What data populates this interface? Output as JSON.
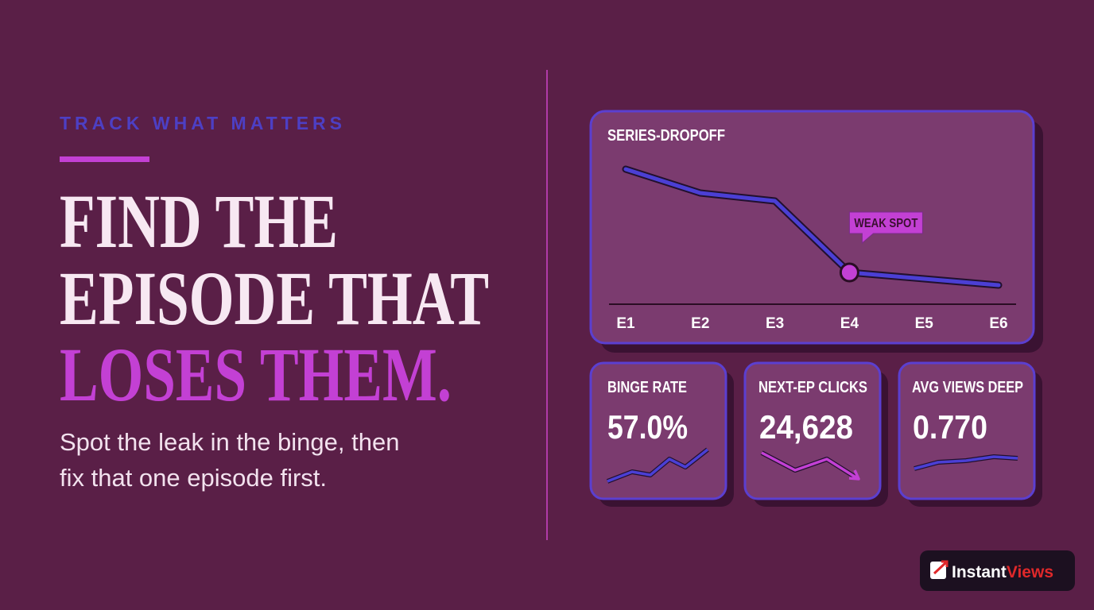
{
  "eyebrow": "TRACK WHAT MATTERS",
  "headline": [
    "FIND THE",
    "EPISODE THAT",
    "LOSES THEM."
  ],
  "subtitle": [
    "Spot the leak in the binge, then",
    "fix that one episode first."
  ],
  "chart_data": {
    "type": "line",
    "title": "SERIES-DROPOFF",
    "categories": [
      "E1",
      "E2",
      "E3",
      "E4",
      "E5",
      "E6"
    ],
    "series": [
      {
        "color": "#4b3fd4",
        "values": [
          85,
          70,
          65,
          20,
          16,
          12
        ]
      }
    ],
    "ylim": [
      0,
      100
    ],
    "annotation": {
      "label": "WEAK SPOT",
      "index": 3,
      "color": "#c340d4"
    }
  },
  "stats": [
    {
      "label": "BINGE RATE",
      "value": "57.0%"
    },
    {
      "label": "NEXT-EP CLICKS",
      "value": "24,628"
    },
    {
      "label": "AVG VIEWS DEEP",
      "value": "0.770"
    }
  ],
  "brand": {
    "part1": "Instant",
    "part2": "Views"
  }
}
